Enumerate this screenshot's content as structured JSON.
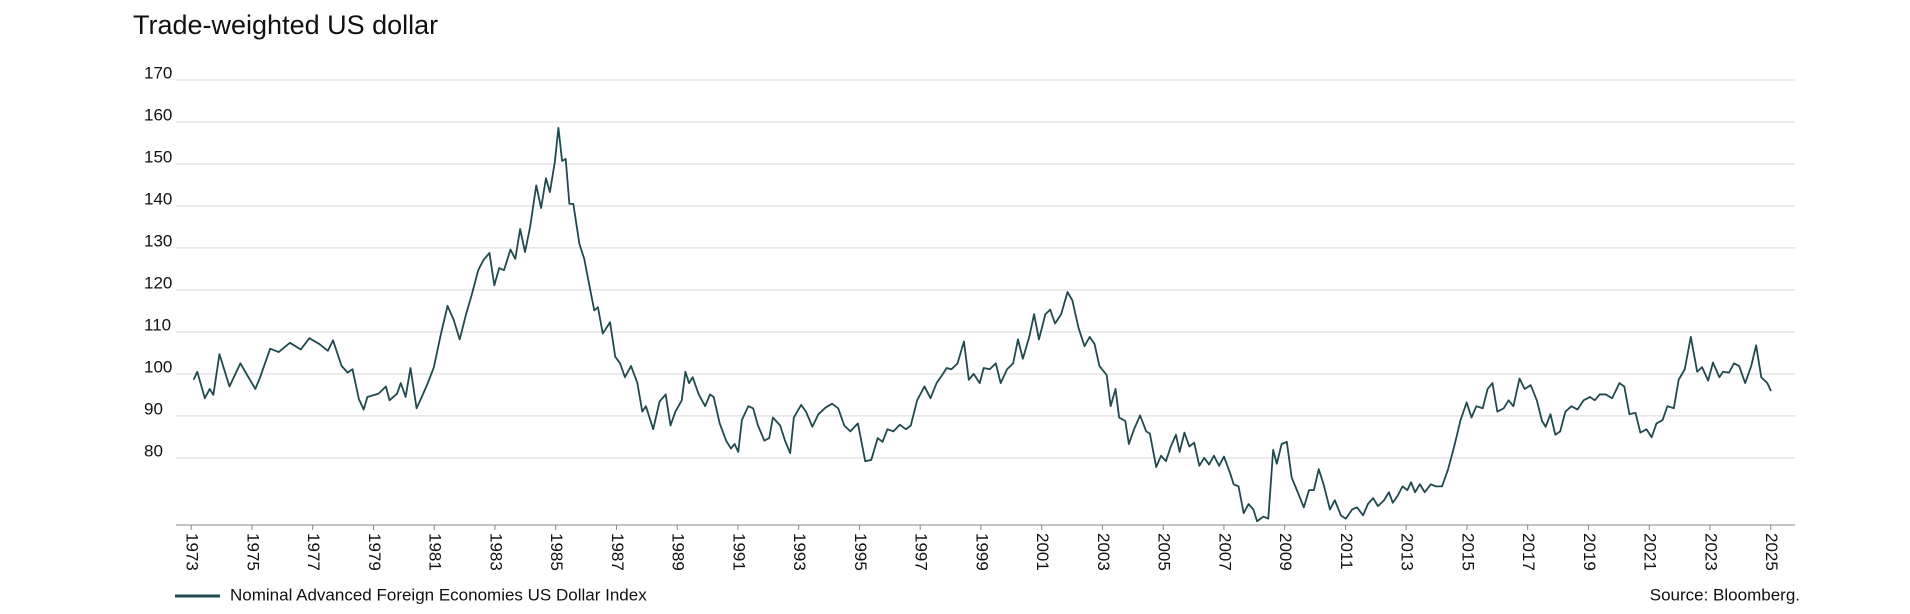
{
  "chart_data": {
    "type": "line",
    "title": "Trade-weighted US dollar",
    "source": "Source: Bloomberg.",
    "xlim": [
      1972.5,
      2025.8
    ],
    "xticks": [
      1973,
      1975,
      1977,
      1979,
      1981,
      1983,
      1985,
      1987,
      1989,
      1991,
      1993,
      1995,
      1997,
      1999,
      2001,
      2003,
      2005,
      2007,
      2009,
      2011,
      2013,
      2015,
      2017,
      2019,
      2021,
      2023,
      2025
    ],
    "ylim": [
      64,
      170
    ],
    "yticks": [
      80,
      90,
      100,
      110,
      120,
      130,
      140,
      150,
      160,
      170
    ],
    "grid": true,
    "x": [
      1973.08,
      1973.2,
      1973.45,
      1973.61,
      1973.73,
      1973.93,
      1974.26,
      1974.62,
      1975.11,
      1975.27,
      1975.6,
      1975.88,
      1976.25,
      1976.61,
      1976.89,
      1977.22,
      1977.5,
      1977.67,
      1977.95,
      1978.15,
      1978.31,
      1978.52,
      1978.68,
      1978.8,
      1979.17,
      1979.41,
      1979.53,
      1979.78,
      1979.9,
      1980.06,
      1980.22,
      1980.42,
      1980.59,
      1980.79,
      1980.99,
      1981.2,
      1981.44,
      1981.64,
      1981.84,
      1982.05,
      1982.25,
      1982.45,
      1982.62,
      1982.82,
      1982.98,
      1983.14,
      1983.3,
      1983.51,
      1983.67,
      1983.83,
      1983.99,
      1984.16,
      1984.36,
      1984.52,
      1984.68,
      1984.81,
      1984.97,
      1985.09,
      1985.21,
      1985.33,
      1985.45,
      1985.58,
      1985.78,
      1985.94,
      1986.1,
      1986.27,
      1986.39,
      1986.55,
      1986.79,
      1986.96,
      1987.12,
      1987.28,
      1987.48,
      1987.69,
      1987.85,
      1987.97,
      1988.21,
      1988.42,
      1988.62,
      1988.78,
      1988.94,
      1989.15,
      1989.27,
      1989.39,
      1989.51,
      1989.71,
      1989.92,
      1990.08,
      1990.2,
      1990.4,
      1990.61,
      1990.77,
      1990.89,
      1991.01,
      1991.13,
      1991.34,
      1991.5,
      1991.66,
      1991.87,
      1992.03,
      1992.15,
      1992.39,
      1992.55,
      1992.72,
      1992.84,
      1993.08,
      1993.24,
      1993.45,
      1993.65,
      1993.89,
      1994.1,
      1994.3,
      1994.5,
      1994.7,
      1994.95,
      1995.19,
      1995.39,
      1995.6,
      1995.76,
      1995.92,
      1996.12,
      1996.33,
      1996.53,
      1996.69,
      1996.9,
      1997.14,
      1997.34,
      1997.54,
      1997.75,
      1997.87,
      1998.03,
      1998.23,
      1998.44,
      1998.6,
      1998.76,
      1998.96,
      1999.09,
      1999.29,
      1999.49,
      1999.65,
      1999.86,
      2000.06,
      2000.22,
      2000.38,
      2000.59,
      2000.75,
      2000.91,
      2001.12,
      2001.28,
      2001.44,
      2001.64,
      2001.85,
      2002.01,
      2002.21,
      2002.41,
      2002.58,
      2002.74,
      2002.9,
      2003.14,
      2003.27,
      2003.43,
      2003.55,
      2003.75,
      2003.87,
      2004.04,
      2004.24,
      2004.44,
      2004.56,
      2004.77,
      2004.93,
      2005.09,
      2005.25,
      2005.42,
      2005.54,
      2005.7,
      2005.86,
      2006.02,
      2006.19,
      2006.35,
      2006.51,
      2006.67,
      2006.84,
      2007.0,
      2007.2,
      2007.32,
      2007.48,
      2007.65,
      2007.81,
      2007.97,
      2008.09,
      2008.3,
      2008.46,
      2008.62,
      2008.74,
      2008.9,
      2009.07,
      2009.23,
      2009.43,
      2009.63,
      2009.8,
      2009.96,
      2010.12,
      2010.28,
      2010.49,
      2010.65,
      2010.85,
      2011.01,
      2011.22,
      2011.38,
      2011.58,
      2011.74,
      2011.91,
      2012.07,
      2012.27,
      2012.43,
      2012.56,
      2012.72,
      2012.88,
      2013.04,
      2013.16,
      2013.29,
      2013.45,
      2013.61,
      2013.81,
      2013.98,
      2014.18,
      2014.38,
      2014.58,
      2014.79,
      2014.99,
      2015.15,
      2015.31,
      2015.52,
      2015.68,
      2015.84,
      2016.0,
      2016.21,
      2016.37,
      2016.53,
      2016.73,
      2016.9,
      2017.1,
      2017.3,
      2017.47,
      2017.59,
      2017.75,
      2017.91,
      2018.07,
      2018.24,
      2018.44,
      2018.64,
      2018.84,
      2019.05,
      2019.21,
      2019.37,
      2019.57,
      2019.78,
      2020.02,
      2020.18,
      2020.35,
      2020.55,
      2020.71,
      2020.91,
      2021.08,
      2021.24,
      2021.44,
      2021.6,
      2021.81,
      2021.97,
      2022.17,
      2022.37,
      2022.58,
      2022.74,
      2022.94,
      2023.1,
      2023.31,
      2023.43,
      2023.63,
      2023.79,
      2023.96,
      2024.16,
      2024.36,
      2024.52,
      2024.69,
      2024.89,
      2025.01
    ],
    "series": [
      {
        "name": "Nominal Advanced Foreign Economies US Dollar Index",
        "color": "#1f4a4f",
        "values": [
          98.6,
          100.5,
          94.2,
          96.4,
          95,
          104.7,
          97,
          102.5,
          96.4,
          99.2,
          106,
          105.2,
          107.4,
          105.8,
          108.5,
          107.1,
          105.5,
          108,
          101.9,
          100.3,
          101.1,
          94,
          91.5,
          94.5,
          95.3,
          97,
          93.7,
          95.3,
          97.8,
          94.5,
          101.4,
          91.8,
          94.5,
          97.8,
          101.6,
          108.8,
          116.2,
          112.9,
          108.2,
          114.2,
          119.2,
          124.7,
          127.1,
          128.8,
          121.1,
          125.2,
          124.7,
          129.6,
          127.4,
          134.5,
          129,
          135.1,
          144.9,
          139.5,
          146.6,
          143.3,
          150.4,
          158.6,
          150.7,
          151.2,
          140.5,
          140.5,
          131,
          127.4,
          121.4,
          115.1,
          115.9,
          109.6,
          112.3,
          104.1,
          102.5,
          99.2,
          101.9,
          97.8,
          91,
          92.3,
          86.8,
          93.4,
          95.1,
          87.7,
          91,
          93.7,
          100.5,
          97.8,
          99.2,
          95.1,
          92.3,
          95.1,
          94.5,
          88.2,
          84.1,
          82.2,
          83.3,
          81.4,
          89,
          92.3,
          91.8,
          87.7,
          84.1,
          84.7,
          89.6,
          87.7,
          84.1,
          81.1,
          89.6,
          92.6,
          91,
          87.4,
          90.4,
          92,
          92.9,
          91.8,
          87.7,
          86.3,
          88.2,
          79.2,
          79.5,
          84.7,
          83.8,
          86.8,
          86.3,
          87.9,
          86.8,
          87.7,
          93.7,
          97,
          94.2,
          97.8,
          100,
          101.4,
          101.1,
          102.5,
          107.7,
          98.6,
          100,
          97.8,
          101.4,
          101.1,
          102.5,
          97.8,
          101.1,
          102.5,
          108.2,
          103.6,
          108.8,
          114.2,
          108.2,
          114.2,
          115.3,
          112,
          114.2,
          119.5,
          117.5,
          111,
          106.6,
          108.8,
          107.1,
          101.9,
          99.7,
          92.3,
          96.4,
          89.6,
          88.8,
          83.3,
          86.8,
          90.1,
          86.3,
          85.8,
          77.8,
          80.5,
          79.2,
          82.7,
          85.5,
          81.4,
          86,
          82.7,
          83.6,
          78.1,
          80,
          78.4,
          80.5,
          78.1,
          80.3,
          76.4,
          73.7,
          73.2,
          66.8,
          69,
          67.7,
          64.9,
          66,
          65.5,
          81.9,
          78.6,
          83.3,
          83.8,
          75.3,
          71.8,
          68.2,
          72.3,
          72.3,
          77.3,
          73.7,
          67.7,
          69.9,
          66.3,
          65.5,
          67.7,
          68.2,
          66.3,
          69,
          70.4,
          68.5,
          69.9,
          71.8,
          69.3,
          71,
          73.2,
          72.3,
          74.2,
          71.8,
          73.7,
          71.8,
          73.7,
          73.2,
          73.2,
          77.3,
          82.7,
          89,
          93.2,
          89.6,
          92.3,
          91.8,
          96.4,
          97.8,
          91,
          91.8,
          93.7,
          92.3,
          98.9,
          96.4,
          97.3,
          93.7,
          88.8,
          87.4,
          90.4,
          85.5,
          86.3,
          91,
          92.3,
          91.5,
          93.7,
          94.5,
          93.7,
          95.1,
          95.1,
          94.2,
          97.8,
          97,
          90.4,
          90.7,
          86,
          86.8,
          84.9,
          88.2,
          89,
          92.3,
          91.8,
          98.6,
          101.1,
          108.8,
          100.5,
          101.6,
          98.4,
          102.7,
          99.2,
          100.5,
          100.3,
          102.5,
          101.9,
          97.8,
          101.9,
          106.8,
          99.2,
          97.8,
          95.9
        ]
      }
    ]
  }
}
